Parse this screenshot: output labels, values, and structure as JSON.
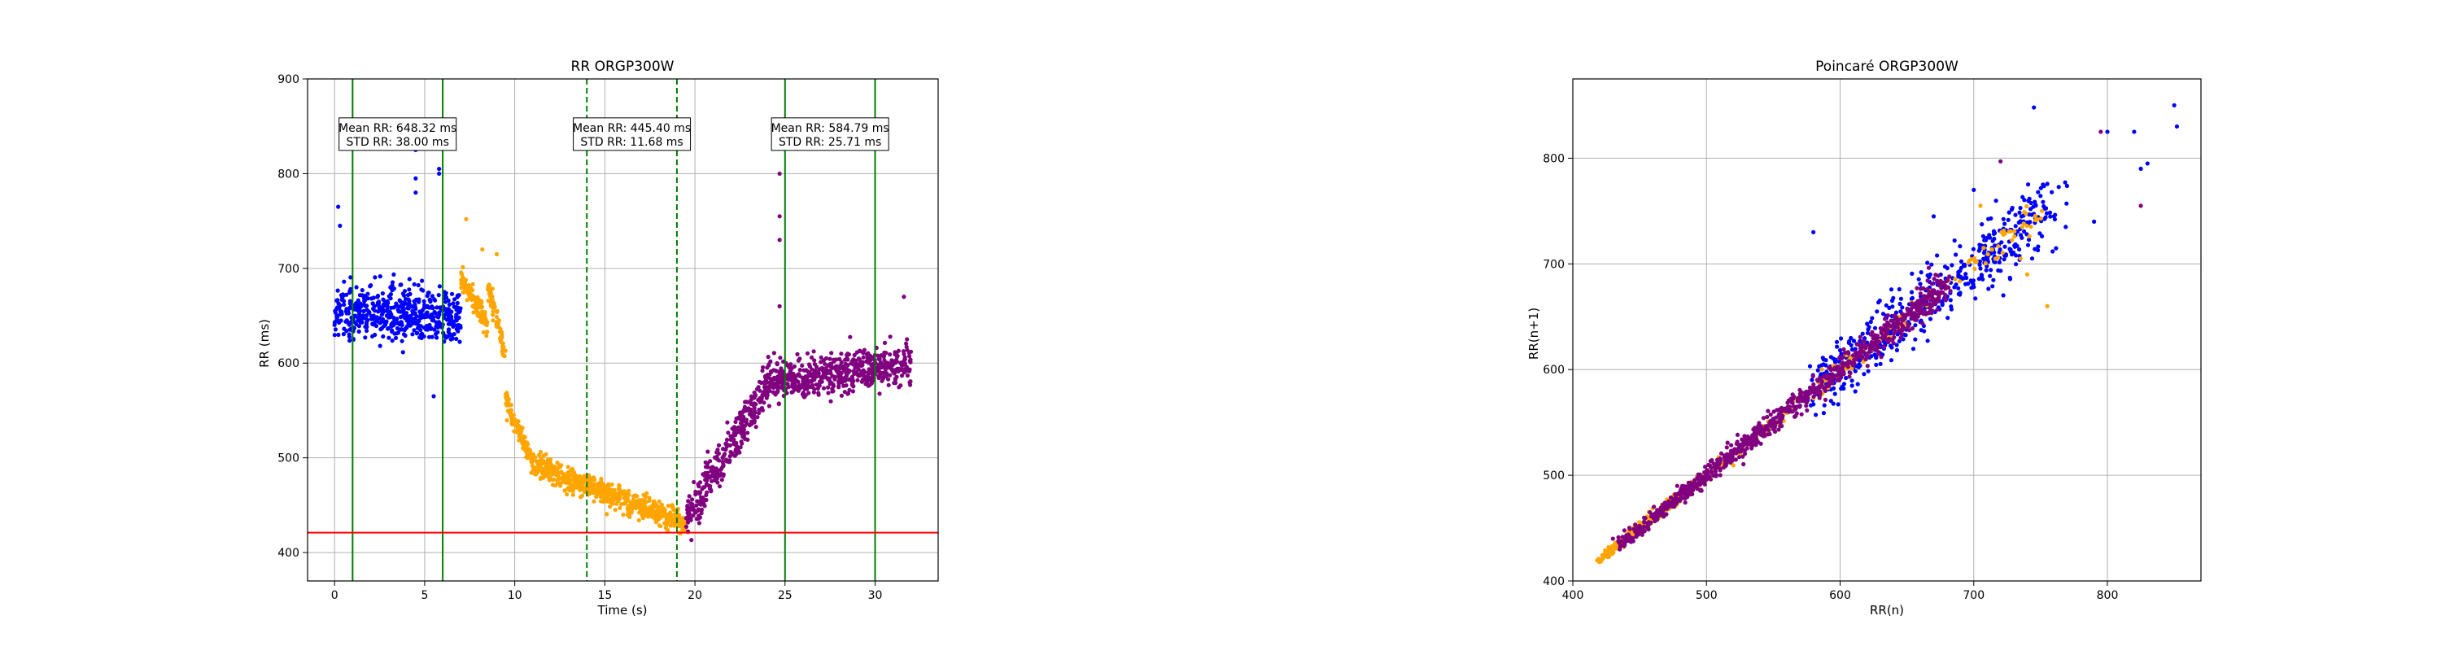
{
  "colors": {
    "blue": "#0000ff",
    "orange": "#ffa500",
    "purple": "#800080",
    "green": "#008000",
    "red": "#ff0000",
    "grid": "#b0b0b0"
  },
  "chart_data": [
    {
      "type": "scatter",
      "title": "RR ORGP300W",
      "xlabel": "Time (s)",
      "ylabel": "RR (ms)",
      "xlim": [
        -1.5,
        33.5
      ],
      "ylim": [
        370,
        900
      ],
      "xticks": [
        0,
        5,
        10,
        15,
        20,
        25,
        30
      ],
      "yticks": [
        400,
        500,
        600,
        700,
        800,
        900
      ],
      "grid": true,
      "series": [
        {
          "color": "blue",
          "x_range": [
            0,
            7
          ],
          "segments": [
            [
              0,
              655,
              7,
              650
            ]
          ],
          "noise": 28,
          "outliers": [
            [
              0.2,
              765
            ],
            [
              0.3,
              745
            ],
            [
              4.5,
              825
            ],
            [
              4.5,
              795
            ],
            [
              4.5,
              780
            ],
            [
              5.8,
              800
            ],
            [
              5.8,
              805
            ],
            [
              5.5,
              565
            ]
          ]
        },
        {
          "color": "orange",
          "x_range": [
            7,
            19.5
          ],
          "segments": [
            [
              7,
              690,
              8.5,
              640
            ],
            [
              8.5,
              680,
              9.5,
              610
            ],
            [
              9.5,
              560,
              11,
              495
            ],
            [
              11,
              495,
              14,
              470
            ],
            [
              14,
              470,
              19.5,
              430
            ]
          ],
          "noise": 11,
          "outliers": [
            [
              7.3,
              752
            ],
            [
              8.2,
              720
            ],
            [
              9,
              715
            ]
          ]
        },
        {
          "color": "purple",
          "x_range": [
            19.5,
            32
          ],
          "segments": [
            [
              19.5,
              440,
              20.5,
              455
            ],
            [
              20.5,
              470,
              24,
              575
            ],
            [
              24,
              580,
              32,
              600
            ]
          ],
          "noise": 20,
          "outliers": [
            [
              24.7,
              827
            ],
            [
              24.7,
              800
            ],
            [
              24.7,
              755
            ],
            [
              24.7,
              730
            ],
            [
              24.7,
              660
            ],
            [
              31.6,
              670
            ]
          ]
        }
      ],
      "vlines": [
        {
          "x": 1,
          "color": "green",
          "style": "solid"
        },
        {
          "x": 6,
          "color": "green",
          "style": "solid"
        },
        {
          "x": 14,
          "color": "green",
          "style": "dashed"
        },
        {
          "x": 19,
          "color": "green",
          "style": "dashed"
        },
        {
          "x": 25,
          "color": "green",
          "style": "solid"
        },
        {
          "x": 30,
          "color": "green",
          "style": "solid"
        }
      ],
      "hlines": [
        {
          "y": 421,
          "color": "red"
        }
      ],
      "annotations": [
        {
          "x": 3.5,
          "y": 840,
          "lines": [
            "Mean RR: 648.32 ms",
            "STD RR: 38.00 ms"
          ]
        },
        {
          "x": 16.5,
          "y": 840,
          "lines": [
            "Mean RR: 445.40 ms",
            "STD RR: 11.68 ms"
          ]
        },
        {
          "x": 27.5,
          "y": 840,
          "lines": [
            "Mean RR: 584.79 ms",
            "STD RR: 25.71 ms"
          ]
        }
      ]
    },
    {
      "type": "scatter",
      "title": "Poincaré ORGP300W",
      "xlabel": "RR(n)",
      "ylabel": "RR(n+1)",
      "xlim": [
        400,
        870
      ],
      "ylim": [
        400,
        875
      ],
      "xticks": [
        400,
        500,
        600,
        700,
        800
      ],
      "yticks": [
        400,
        500,
        600,
        700,
        800
      ],
      "grid": true,
      "series": [
        {
          "color": "blue",
          "range": [
            580,
            760
          ],
          "spread": 18,
          "outliers": [
            [
              580,
              730
            ],
            [
              670,
              745
            ],
            [
              700,
              770
            ],
            [
              745,
              848
            ],
            [
              800,
              825
            ],
            [
              820,
              825
            ],
            [
              825,
              790
            ],
            [
              830,
              795
            ],
            [
              850,
              850
            ],
            [
              852,
              830
            ],
            [
              760,
              745
            ],
            [
              790,
              740
            ]
          ]
        },
        {
          "color": "orange",
          "range": [
            420,
            750
          ],
          "spread": 7,
          "outliers": [
            [
              705,
              755
            ],
            [
              755,
              660
            ],
            [
              735,
              705
            ],
            [
              740,
              690
            ]
          ]
        },
        {
          "color": "purple",
          "range": [
            435,
            680
          ],
          "spread": 9,
          "outliers": [
            [
              720,
              797
            ],
            [
              795,
              825
            ],
            [
              825,
              755
            ],
            [
              430,
              440
            ]
          ]
        }
      ]
    }
  ]
}
